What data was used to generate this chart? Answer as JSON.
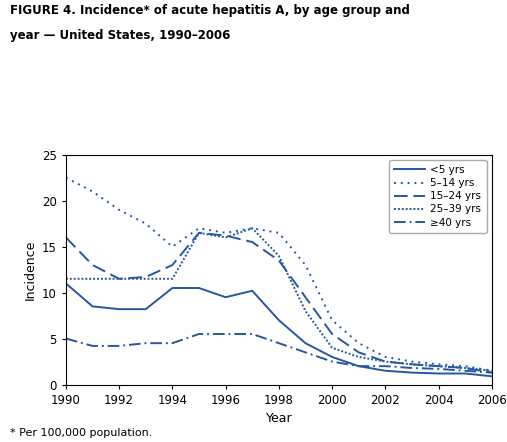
{
  "title_line1": "FIGURE 4. Incidence* of acute hepatitis A, by age group and",
  "title_line2": "year — United States, 1990–2006",
  "footnote": "* Per 100,000 population.",
  "xlabel": "Year",
  "ylabel": "Incidence",
  "xlim": [
    1990,
    2006
  ],
  "ylim": [
    0,
    25
  ],
  "yticks": [
    0,
    5,
    10,
    15,
    20,
    25
  ],
  "xticks": [
    1990,
    1992,
    1994,
    1996,
    1998,
    2000,
    2002,
    2004,
    2006
  ],
  "color": "#2458A0",
  "years": [
    1990,
    1991,
    1992,
    1993,
    1994,
    1995,
    1996,
    1997,
    1998,
    1999,
    2000,
    2001,
    2002,
    2003,
    2004,
    2005,
    2006
  ],
  "lt5": [
    11.0,
    8.5,
    8.2,
    8.2,
    10.5,
    10.5,
    9.5,
    10.2,
    7.0,
    4.5,
    3.0,
    2.0,
    1.5,
    1.3,
    1.2,
    1.2,
    0.9
  ],
  "age5_14": [
    22.5,
    21.0,
    19.0,
    17.5,
    15.0,
    17.0,
    16.5,
    17.0,
    16.5,
    13.0,
    7.0,
    4.5,
    3.0,
    2.5,
    2.2,
    2.0,
    1.5
  ],
  "age15_24": [
    16.0,
    13.0,
    11.5,
    11.7,
    13.0,
    16.5,
    16.2,
    15.5,
    13.5,
    9.5,
    5.5,
    3.5,
    2.5,
    2.2,
    2.0,
    1.8,
    1.3
  ],
  "age25_39": [
    11.5,
    11.5,
    11.5,
    11.5,
    11.5,
    16.5,
    16.0,
    17.0,
    14.0,
    8.0,
    4.0,
    3.0,
    2.5,
    2.2,
    2.0,
    1.8,
    1.5
  ],
  "age40plus": [
    5.0,
    4.2,
    4.2,
    4.5,
    4.5,
    5.5,
    5.5,
    5.5,
    4.5,
    3.5,
    2.5,
    2.0,
    2.0,
    1.8,
    1.7,
    1.5,
    1.3
  ],
  "legend_labels": [
    "<5 yrs",
    "5–14 yrs",
    "15–24 yrs",
    "25–39 yrs",
    "≥40 yrs"
  ]
}
